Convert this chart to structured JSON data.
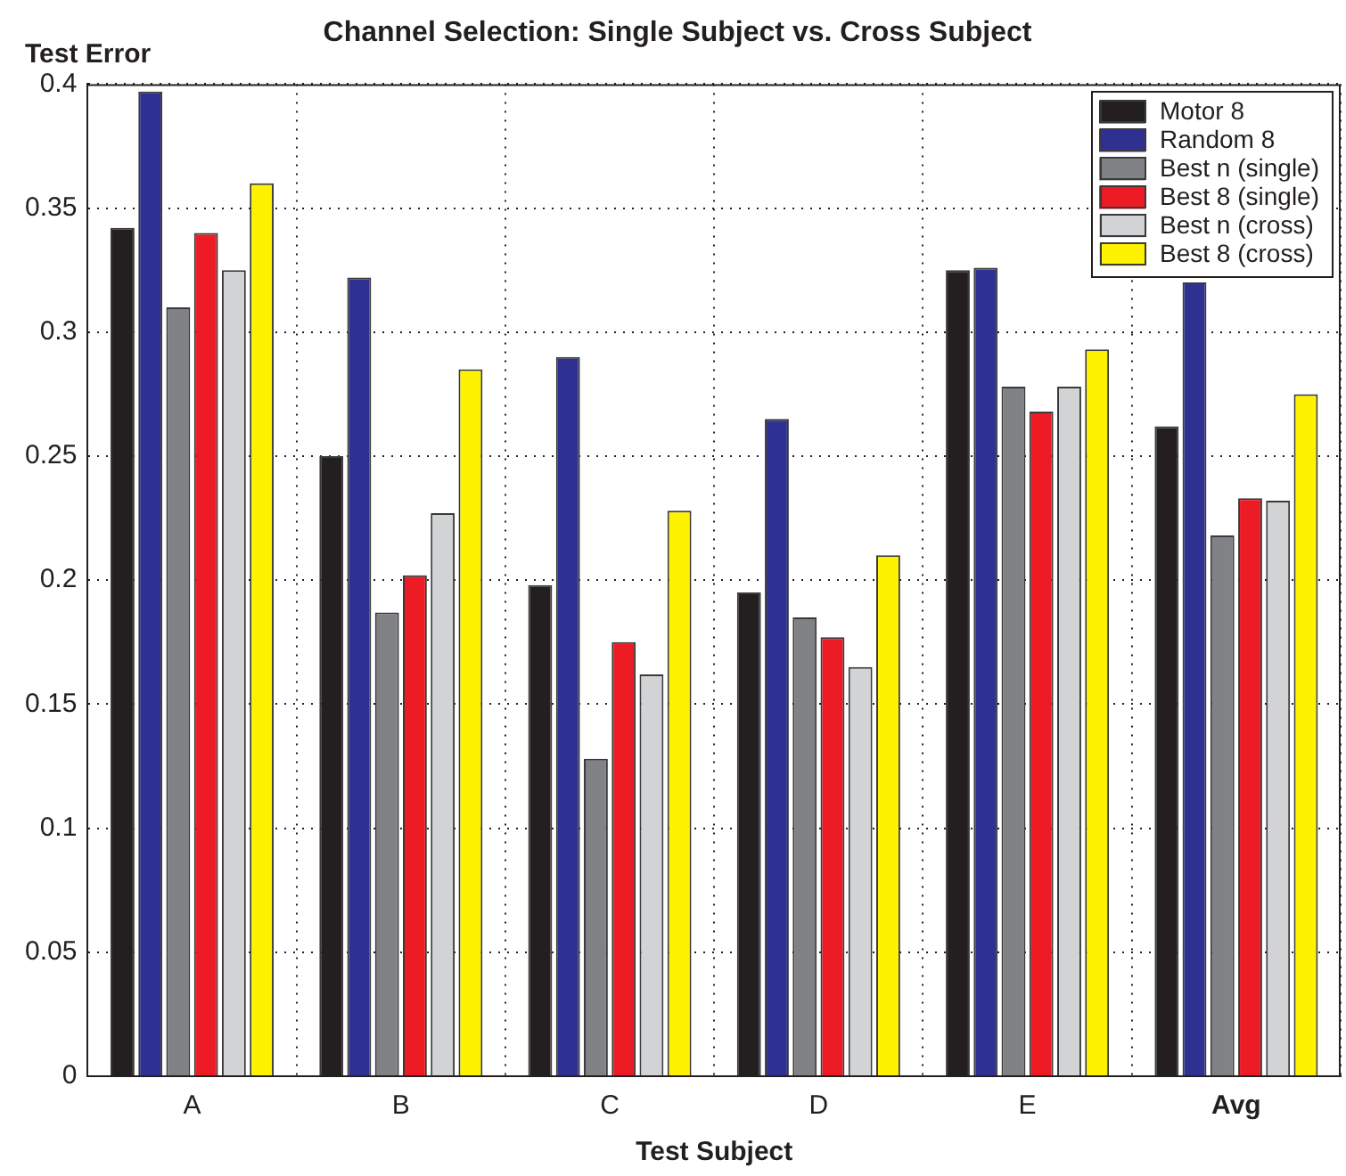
{
  "chart_data": {
    "type": "bar",
    "title": "Channel Selection: Single Subject vs. Cross Subject",
    "xlabel": "Test Subject",
    "ylabel": "Test Error",
    "categories": [
      "A",
      "B",
      "C",
      "D",
      "E",
      "Avg"
    ],
    "series": [
      {
        "name": "Motor 8",
        "color": "#231f20",
        "values": [
          0.342,
          0.25,
          0.198,
          0.195,
          0.325,
          0.262
        ]
      },
      {
        "name": "Random 8",
        "color": "#2e3192",
        "values": [
          0.397,
          0.322,
          0.29,
          0.265,
          0.326,
          0.32
        ]
      },
      {
        "name": "Best n (single)",
        "color": "#808285",
        "values": [
          0.31,
          0.187,
          0.128,
          0.185,
          0.278,
          0.218
        ]
      },
      {
        "name": "Best 8 (single)",
        "color": "#ed1c24",
        "values": [
          0.34,
          0.202,
          0.175,
          0.177,
          0.268,
          0.233
        ]
      },
      {
        "name": "Best n (cross)",
        "color": "#d1d3d4",
        "values": [
          0.325,
          0.227,
          0.162,
          0.165,
          0.278,
          0.232
        ]
      },
      {
        "name": "Best 8 (cross)",
        "color": "#fff200",
        "values": [
          0.36,
          0.285,
          0.228,
          0.21,
          0.293,
          0.275
        ]
      }
    ],
    "ylim": [
      0,
      0.4
    ],
    "yticks": [
      0,
      0.05,
      0.1,
      0.15,
      0.2,
      0.25,
      0.3,
      0.35,
      0.4
    ],
    "grid": true,
    "legend": "top right"
  }
}
